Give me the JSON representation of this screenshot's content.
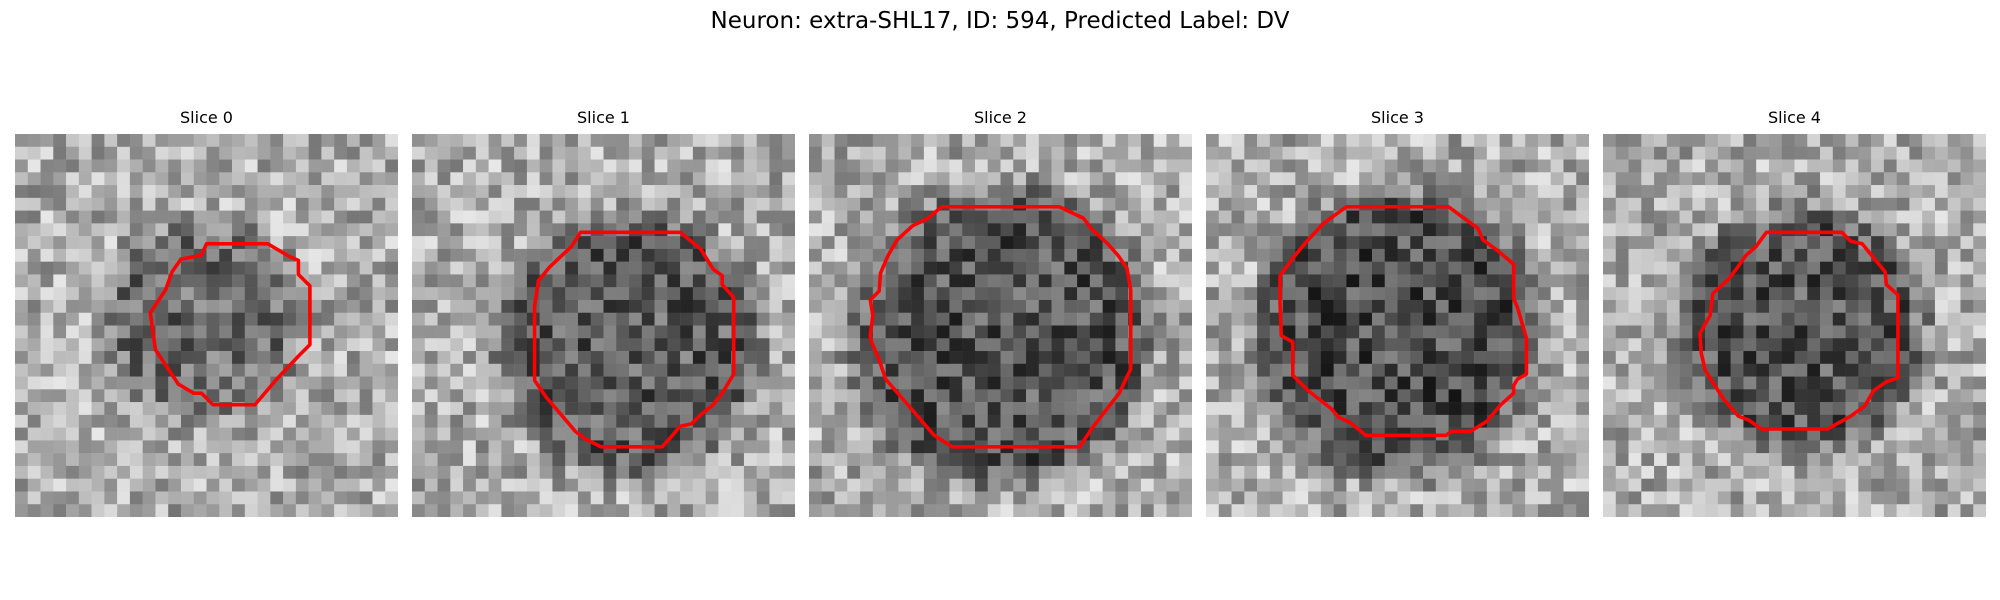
{
  "figure": {
    "title": "Neuron: extra-SHL17, ID: 594, Predicted Label: DV"
  },
  "panels": [
    {
      "title": "Slice 0",
      "seed": 11,
      "dark_center": [
        0.49,
        0.49
      ],
      "dark_radius": 0.21,
      "dark_level": 0.42
    },
    {
      "title": "Slice 1",
      "seed": 23,
      "dark_center": [
        0.57,
        0.55
      ],
      "dark_radius": 0.29,
      "dark_level": 0.36
    },
    {
      "title": "Slice 2",
      "seed": 37,
      "dark_center": [
        0.5,
        0.53
      ],
      "dark_radius": 0.34,
      "dark_level": 0.33
    },
    {
      "title": "Slice 3",
      "seed": 41,
      "dark_center": [
        0.5,
        0.52
      ],
      "dark_radius": 0.32,
      "dark_level": 0.3
    },
    {
      "title": "Slice 4",
      "seed": 53,
      "dark_center": [
        0.52,
        0.51
      ],
      "dark_radius": 0.27,
      "dark_level": 0.33
    }
  ],
  "style": {
    "contour_color": "#ff0000",
    "colormap": "gray"
  }
}
